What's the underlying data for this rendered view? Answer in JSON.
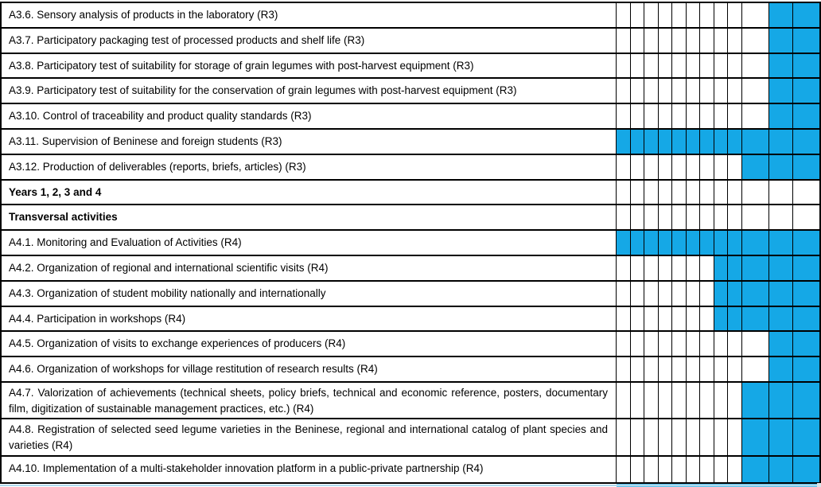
{
  "table": {
    "description": "Project work-plan Gantt table",
    "fill_color": "#15a8e6",
    "grid_color": "#000000",
    "columns": {
      "narrow_count": 9,
      "wide_count": 3,
      "total": 12
    },
    "rows": [
      {
        "label": "A3.6. Sensory analysis of products in the laboratory (R3)",
        "bold": false,
        "lines": 1,
        "filled": [
          11,
          12
        ]
      },
      {
        "label": "A3.7. Participatory packaging test of processed products and shelf life (R3)",
        "bold": false,
        "lines": 1,
        "filled": [
          11,
          12
        ]
      },
      {
        "label": "A3.8. Participatory test of suitability for storage of grain legumes with post-harvest equipment (R3)",
        "bold": false,
        "lines": 1,
        "filled": [
          11,
          12
        ]
      },
      {
        "label": "A3.9. Participatory test of suitability for the conservation of grain legumes with post-harvest equipment (R3)",
        "bold": false,
        "lines": 1,
        "filled": [
          11,
          12
        ]
      },
      {
        "label": "A3.10. Control of traceability and product quality standards (R3)",
        "bold": false,
        "lines": 1,
        "filled": [
          11,
          12
        ]
      },
      {
        "label": "A3.11. Supervision of Beninese and foreign students (R3)",
        "bold": false,
        "lines": 1,
        "filled": [
          1,
          2,
          3,
          4,
          5,
          6,
          7,
          8,
          9,
          10,
          11,
          12
        ]
      },
      {
        "label": "A3.12. Production of deliverables (reports, briefs, articles) (R3)",
        "bold": false,
        "lines": 1,
        "filled": [
          10,
          11,
          12
        ]
      },
      {
        "label": "Years 1, 2, 3 and 4",
        "bold": true,
        "lines": 1,
        "filled": []
      },
      {
        "label": "Transversal activities",
        "bold": true,
        "lines": 1,
        "filled": []
      },
      {
        "label": "A4.1. Monitoring and Evaluation of Activities (R4)",
        "bold": false,
        "lines": 1,
        "filled": [
          1,
          2,
          3,
          4,
          5,
          6,
          7,
          8,
          9,
          10,
          11,
          12
        ]
      },
      {
        "label": "A4.2. Organization of regional and international scientific visits (R4)",
        "bold": false,
        "lines": 1,
        "filled": [
          8,
          9,
          10,
          11,
          12
        ]
      },
      {
        "label": "A4.3. Organization of student mobility nationally and internationally",
        "bold": false,
        "lines": 1,
        "filled": [
          8,
          9,
          10,
          11,
          12
        ]
      },
      {
        "label": "A4.4. Participation in workshops (R4)",
        "bold": false,
        "lines": 1,
        "filled": [
          8,
          9,
          10,
          11,
          12
        ]
      },
      {
        "label": "A4.5. Organization of visits to exchange experiences of producers (R4)",
        "bold": false,
        "lines": 1,
        "filled": [
          11,
          12
        ]
      },
      {
        "label": "A4.6. Organization of workshops for village restitution of research results (R4)",
        "bold": false,
        "lines": 1,
        "filled": [
          11,
          12
        ]
      },
      {
        "label": "A4.7. Valorization of achievements (technical sheets, policy briefs, technical and economic reference, posters, documentary film, digitization of sustainable management practices, etc.) (R4)",
        "bold": false,
        "lines": 2,
        "filled": [
          10,
          11,
          12
        ]
      },
      {
        "label": "A4.8. Registration of selected seed legume varieties in the Beninese, regional and international catalog of plant species and varieties (R4)",
        "bold": false,
        "lines": 2,
        "filled": [
          10,
          11,
          12
        ]
      },
      {
        "label": "A4.10. Implementation of a multi-stakeholder innovation platform in a public-private partnership (R4)",
        "bold": false,
        "lines": 1,
        "filled": [
          10,
          11,
          12
        ]
      }
    ]
  },
  "artifacts": {
    "sliver_light_color": "#aed9ee",
    "sliver_bright_color": "#5fc4ec",
    "corner_chip_color": "#dce2e6"
  }
}
